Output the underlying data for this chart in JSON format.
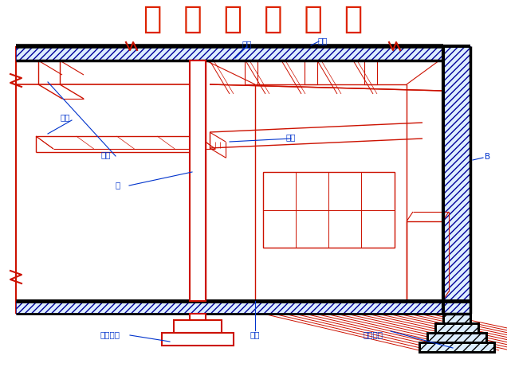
{
  "title": "柱  平  法  施  工  图",
  "title_color": "#DD2200",
  "bg_color": "#FFFFFF",
  "red": "#CC1100",
  "blue": "#0033CC",
  "black": "#000000",
  "dark_blue": "#000099",
  "labels": {
    "主梁_top": "主梁",
    "楼板": "楼板",
    "次梁_left": "次梁",
    "主梁_left": "主梁",
    "柱": "柱",
    "次梁_right": "次梁",
    "独立基础": "独立基础",
    "地面": "地面",
    "条形基础": "条形基础",
    "B": "B"
  },
  "figsize": [
    6.36,
    4.77
  ],
  "dpi": 100
}
